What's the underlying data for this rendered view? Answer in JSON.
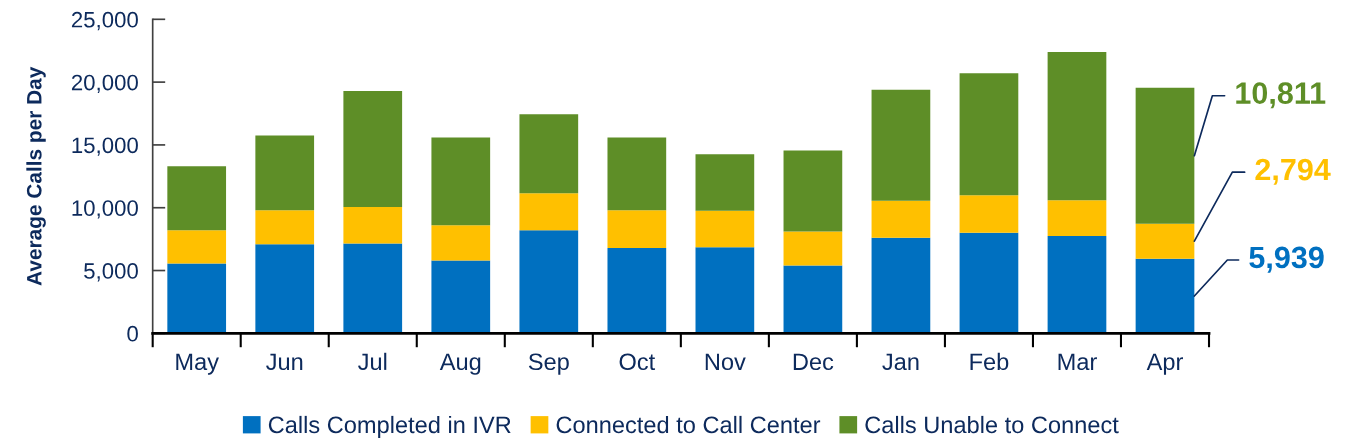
{
  "chart_data": {
    "type": "bar",
    "stacked": true,
    "ylabel": "Average Calls per Day",
    "categories": [
      "May",
      "Jun",
      "Jul",
      "Aug",
      "Sep",
      "Oct",
      "Nov",
      "Dec",
      "Jan",
      "Feb",
      "Mar",
      "Apr"
    ],
    "ylim": [
      0,
      25000
    ],
    "yticks": [
      0,
      {
        "value": 5000,
        "label": "5,000"
      },
      {
        "value": 10000,
        "label": "10,000"
      },
      {
        "value": 15000,
        "label": "15,000"
      },
      {
        "value": 20000,
        "label": "20,000"
      },
      {
        "value": 25000,
        "label": "25,000"
      }
    ],
    "legend": "bottom",
    "series": [
      {
        "name": "Calls Completed in IVR",
        "color": "#0070c0",
        "values": [
          5550,
          7100,
          7150,
          5800,
          8200,
          6800,
          6850,
          5400,
          7600,
          8000,
          7750,
          5939
        ],
        "value_labels": [
          null,
          null,
          null,
          null,
          null,
          null,
          null,
          null,
          null,
          null,
          null,
          "5,939"
        ]
      },
      {
        "name": "Connected to Call Center",
        "color": "#ffc000",
        "values": [
          2650,
          2700,
          2900,
          2800,
          2950,
          3000,
          2900,
          2700,
          2950,
          3000,
          2850,
          2794
        ],
        "value_labels": [
          null,
          null,
          null,
          null,
          null,
          null,
          null,
          null,
          null,
          null,
          null,
          "2,794"
        ]
      },
      {
        "name": "Calls Unable to Connect",
        "color": "#5e8e27",
        "values": [
          5100,
          5950,
          9250,
          7000,
          6300,
          5800,
          4500,
          6450,
          8850,
          9700,
          11800,
          10811
        ],
        "value_labels": [
          null,
          null,
          null,
          null,
          null,
          null,
          null,
          null,
          null,
          null,
          null,
          "10,811"
        ]
      }
    ]
  }
}
